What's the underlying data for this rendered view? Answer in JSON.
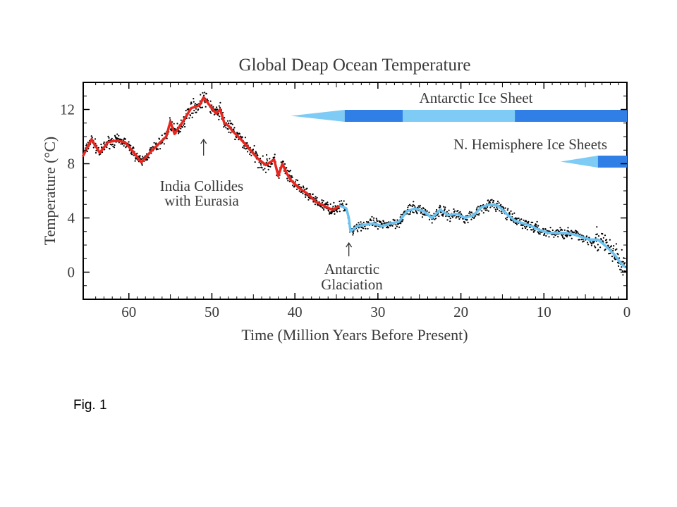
{
  "caption": "Fig. 1",
  "chart_data": {
    "type": "line",
    "title": "Global Deap Ocean Temperature",
    "xlabel": "Time (Million Years Before Present)",
    "ylabel": "Temperature (°C)",
    "xlim": [
      65.5,
      0
    ],
    "ylim": [
      -2,
      14
    ],
    "x_ticks": [
      60,
      50,
      40,
      30,
      20,
      10,
      0
    ],
    "y_ticks": [
      0,
      4,
      8,
      12
    ],
    "grid": false,
    "colors": {
      "early_series": "#e8261e",
      "late_series": "#6cc3f0",
      "raw_points": "#000000",
      "ice_light": "#7ecbf5",
      "ice_dark": "#2f7fe6"
    },
    "series": [
      {
        "x": [
          65.5,
          64.5,
          63.5,
          62.5,
          61.5,
          60.5,
          59.5,
          58.5,
          57.5,
          56.5,
          55.5,
          55,
          54.5,
          53.5,
          52.5,
          51.5,
          51,
          50.5,
          49.5,
          49,
          48.5,
          48,
          47.5,
          46.5,
          45.5,
          44.5,
          43.5,
          42.5,
          42,
          41.5,
          41,
          40.5,
          39.5,
          38.5,
          37.5,
          36.5,
          35.5,
          34.5
        ],
        "y": [
          8.6,
          9.8,
          8.8,
          9.6,
          9.7,
          9.6,
          8.9,
          8.1,
          8.8,
          9.4,
          10.0,
          11.1,
          10.2,
          11.1,
          12.1,
          12.3,
          12.9,
          12.5,
          11.7,
          12.0,
          11.0,
          10.8,
          10.4,
          9.8,
          9.1,
          8.4,
          7.9,
          8.3,
          7.1,
          8.0,
          7.3,
          6.8,
          6.2,
          5.8,
          5.2,
          4.9,
          4.6,
          4.9
        ]
      },
      {
        "x": [
          34.5,
          33.8,
          33.5,
          33.3,
          32.5,
          31.5,
          30.5,
          29.5,
          28.5,
          27.5,
          26.5,
          25.5,
          24.5,
          23.5,
          22.5,
          21.5,
          20.5,
          19.5,
          18.5,
          17.5,
          16.5,
          15.5,
          14.5,
          13.5,
          12.5,
          11.5,
          10.5,
          9.5,
          8.5,
          7.5,
          6.5,
          5.5,
          4.5,
          3.5,
          2.5,
          1.5,
          0.8,
          0.3
        ],
        "y": [
          4.9,
          4.7,
          4.0,
          3.0,
          3.4,
          3.5,
          3.6,
          3.4,
          3.6,
          3.7,
          4.5,
          4.7,
          4.5,
          4.0,
          4.6,
          4.2,
          4.3,
          4.0,
          4.2,
          4.8,
          5.0,
          4.9,
          4.3,
          3.8,
          3.6,
          3.4,
          3.1,
          2.9,
          2.9,
          2.9,
          2.8,
          2.6,
          2.4,
          2.4,
          1.9,
          1.3,
          0.7,
          0.4
        ]
      }
    ],
    "ice_sheets": [
      {
        "label": "Antarctic Ice Sheet",
        "segments": [
          {
            "from": 40.5,
            "to": 34,
            "kind": "tapered-light"
          },
          {
            "from": 34,
            "to": 27,
            "kind": "dark"
          },
          {
            "from": 27,
            "to": 13.5,
            "kind": "light"
          },
          {
            "from": 13.5,
            "to": 0,
            "kind": "dark"
          }
        ]
      },
      {
        "label": "N. Hemisphere Ice Sheets",
        "segments": [
          {
            "from": 8,
            "to": 3.5,
            "kind": "tapered-light"
          },
          {
            "from": 3.5,
            "to": 0,
            "kind": "dark"
          }
        ]
      }
    ],
    "annotations": [
      {
        "lines": [
          "India Collides",
          "with Eurasia"
        ],
        "arrow_x": 51
      },
      {
        "lines": [
          "Antarctic",
          "Glaciation"
        ],
        "arrow_x": 33.5
      }
    ]
  }
}
